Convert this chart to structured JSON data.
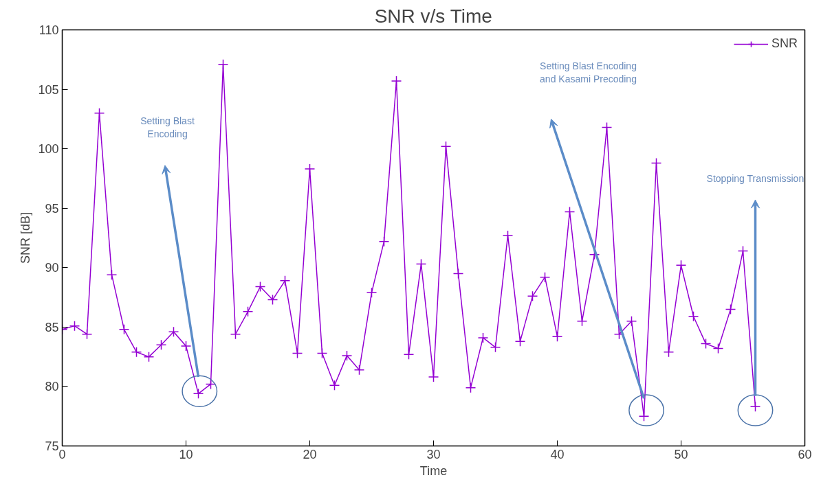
{
  "chart_data": {
    "type": "line",
    "title": "SNR v/s Time",
    "xlabel": "Time",
    "ylabel": "SNR [dB]",
    "x": [
      0,
      1,
      2,
      3,
      4,
      5,
      6,
      7,
      8,
      9,
      10,
      11,
      12,
      13,
      14,
      15,
      16,
      17,
      18,
      19,
      20,
      21,
      22,
      23,
      24,
      25,
      26,
      27,
      28,
      29,
      30,
      31,
      32,
      33,
      34,
      35,
      36,
      37,
      38,
      39,
      40,
      41,
      42,
      43,
      44,
      45,
      46,
      47,
      48,
      49,
      50,
      51,
      52,
      53,
      54,
      55,
      56
    ],
    "series": [
      {
        "name": "SNR",
        "color": "#9400d3",
        "values": [
          84.8,
          85.1,
          84.4,
          103,
          89.4,
          84.8,
          82.9,
          82.5,
          83.5,
          84.6,
          83.4,
          79.4,
          80.2,
          107.1,
          84.4,
          86.3,
          88.4,
          87.3,
          88.9,
          82.8,
          98.3,
          82.8,
          80.1,
          82.6,
          81.4,
          87.9,
          92.2,
          105.7,
          82.7,
          90.3,
          80.8,
          100.2,
          89.5,
          79.9,
          84.1,
          83.3,
          92.7,
          83.8,
          87.6,
          89.2,
          84.2,
          94.7,
          85.5,
          91.1,
          101.8,
          84.4,
          85.5,
          77.5,
          98.8,
          82.9,
          90.2,
          85.9,
          83.6,
          83.2,
          86.5,
          91.4,
          78.3
        ]
      }
    ],
    "xlim": [
      0,
      60
    ],
    "ylim": [
      75,
      110
    ],
    "xticks": [
      0,
      10,
      20,
      30,
      40,
      50,
      60
    ],
    "yticks": [
      75,
      80,
      85,
      90,
      95,
      100,
      105,
      110
    ],
    "grid": false,
    "legend": "top right",
    "marker": "cross",
    "line_style": "solid",
    "annotations": [
      "Setting Blast\nEncoding",
      "Setting Blast Encoding\nand Kasami Precoding",
      "Stopping Transmission"
    ]
  }
}
